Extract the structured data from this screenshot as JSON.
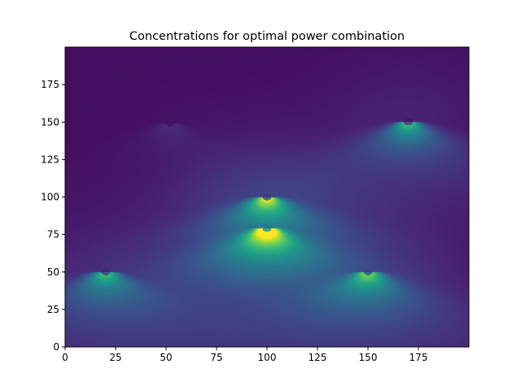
{
  "chart_data": {
    "type": "heatmap",
    "title": "Concentrations for optimal power combination",
    "xlabel": "",
    "ylabel": "",
    "xlim": [
      0,
      200
    ],
    "ylim": [
      0,
      200
    ],
    "x_ticks": [
      0,
      25,
      50,
      75,
      100,
      125,
      150,
      175
    ],
    "y_ticks": [
      0,
      25,
      50,
      75,
      100,
      125,
      150,
      175
    ],
    "x_tick_labels": [
      "0",
      "25",
      "50",
      "75",
      "100",
      "125",
      "150",
      "175"
    ],
    "y_tick_labels": [
      "0",
      "25",
      "50",
      "75",
      "100",
      "125",
      "150",
      "175"
    ],
    "colormap": "viridis",
    "colormap_colors": [
      "#440154",
      "#482878",
      "#3e4989",
      "#31688e",
      "#26828e",
      "#1f9e89",
      "#35b779",
      "#6ece58",
      "#b5de2b",
      "#fde725"
    ],
    "background_value": 0.02,
    "sources": [
      {
        "x": 20,
        "y": 50,
        "peak": 0.55
      },
      {
        "x": 100,
        "y": 100,
        "peak": 0.8
      },
      {
        "x": 100,
        "y": 79,
        "peak": 1.0
      },
      {
        "x": 150,
        "y": 50,
        "peak": 0.6
      },
      {
        "x": 170,
        "y": 150,
        "peak": 0.58
      },
      {
        "x": 52,
        "y": 149,
        "peak": 0.06
      }
    ],
    "grid": false,
    "legend": "none"
  }
}
